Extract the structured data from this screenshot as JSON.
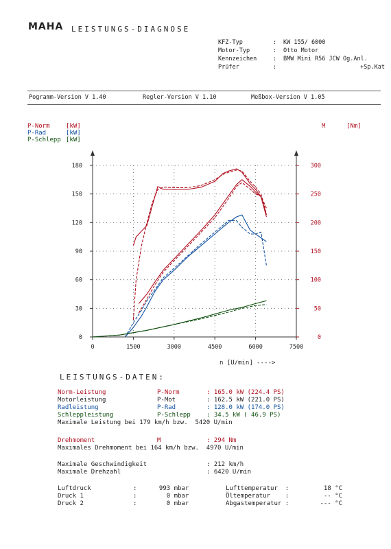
{
  "header": {
    "logo": "MAHA",
    "title": "LEISTUNGS-DIAGNOSE",
    "meta": [
      {
        "key": "KFZ-Typ",
        "sep": ":",
        "value": "KW 155/ 6000"
      },
      {
        "key": "Motor-Typ",
        "sep": ":",
        "value": "Otto Motor"
      },
      {
        "key": "Kennzeichen",
        "sep": ":",
        "value": "BMW Mini R56 JCW Og.Anl."
      },
      {
        "key": "Prüfer",
        "sep": ":",
        "value": "+Sp.Kat"
      }
    ]
  },
  "versions": {
    "program": "Pogramm-Version V 1.40",
    "regler": "Regler-Version V 1.10",
    "messbox": "Meßbox-Version V 1.05"
  },
  "colors": {
    "norm": "#b01020",
    "rad": "#1050a0",
    "schlepp": "#105010",
    "grid": "#555555"
  },
  "chart_data": {
    "type": "line",
    "left_axis_labels": [
      {
        "name": "P-Norm",
        "unit": "[kW]"
      },
      {
        "name": "P-Rad",
        "unit": "[kW]"
      },
      {
        "name": "P-Schlepp",
        "unit": "[kW]"
      }
    ],
    "right_axis_label": {
      "name": "M",
      "unit": "[Nm]"
    },
    "xlabel": "n [U/min] ---->",
    "xlim": [
      0,
      7500
    ],
    "ylim_left": [
      0,
      180
    ],
    "ylim_right": [
      0,
      300
    ],
    "x_ticks": [
      "0",
      "1500",
      "3000",
      "4500",
      "6000",
      "7500"
    ],
    "x_tick_values": [
      0,
      1500,
      3000,
      4500,
      6000,
      7500
    ],
    "y_left_ticks": [
      "0",
      "30",
      "60",
      "90",
      "120",
      "150",
      "180"
    ],
    "y_right_ticks": [
      "0",
      "50",
      "100",
      "150",
      "200",
      "250",
      "300"
    ],
    "grid": true,
    "series": [
      {
        "name": "M",
        "axis": "right",
        "color": "#b01020",
        "dashed": true,
        "x": [
          1500,
          1600,
          1800,
          2000,
          2200,
          2400,
          2600,
          3000,
          3500,
          4000,
          4500,
          4800,
          5000,
          5300,
          5500,
          5800,
          6000,
          6200,
          6400
        ],
        "y": [
          30,
          100,
          160,
          200,
          235,
          258,
          262,
          261,
          261,
          265,
          275,
          284,
          288,
          292,
          290,
          272,
          262,
          250,
          215
        ]
      },
      {
        "name": "M",
        "axis": "right",
        "color": "#b01020",
        "dashed": false,
        "x": [
          1500,
          1600,
          1800,
          2000,
          2200,
          2400,
          2600,
          3000,
          3500,
          4000,
          4500,
          4800,
          5000,
          5300,
          5500,
          5800,
          6000,
          6200,
          6400
        ],
        "y": [
          160,
          175,
          185,
          195,
          230,
          263,
          258,
          258,
          258,
          262,
          272,
          286,
          290,
          294,
          288,
          268,
          258,
          245,
          210
        ]
      },
      {
        "name": "P-Norm",
        "axis": "left",
        "color": "#b01020",
        "dashed": true,
        "x": [
          1700,
          2000,
          2300,
          2600,
          3000,
          3500,
          4000,
          4500,
          5000,
          5300,
          5500,
          5800,
          6000,
          6200,
          6400
        ],
        "y": [
          25,
          40,
          55,
          68,
          80,
          95,
          110,
          125,
          145,
          158,
          162,
          155,
          150,
          148,
          135
        ]
      },
      {
        "name": "P-Norm",
        "axis": "left",
        "color": "#b01020",
        "dashed": false,
        "x": [
          1700,
          2000,
          2300,
          2600,
          3000,
          3500,
          4000,
          4500,
          5000,
          5300,
          5500,
          5800,
          6000,
          6200,
          6400
        ],
        "y": [
          35,
          45,
          58,
          70,
          82,
          97,
          112,
          128,
          148,
          160,
          165,
          158,
          152,
          147,
          128
        ]
      },
      {
        "name": "P-Rad",
        "axis": "left",
        "color": "#1050a0",
        "dashed": true,
        "x": [
          1200,
          1500,
          1800,
          2000,
          2300,
          2600,
          3000,
          3500,
          4000,
          4500,
          5000,
          5300,
          5500,
          5800,
          6000,
          6200,
          6400
        ],
        "y": [
          0,
          15,
          28,
          38,
          50,
          62,
          72,
          85,
          98,
          110,
          122,
          122,
          115,
          108,
          108,
          110,
          75
        ]
      },
      {
        "name": "P-Rad",
        "axis": "left",
        "color": "#1050a0",
        "dashed": false,
        "x": [
          1200,
          1500,
          1800,
          2000,
          2300,
          2600,
          3000,
          3500,
          4000,
          4500,
          5000,
          5300,
          5500,
          5800,
          6000,
          6200,
          6400
        ],
        "y": [
          0,
          10,
          22,
          32,
          48,
          60,
          70,
          84,
          96,
          108,
          120,
          126,
          128,
          112,
          108,
          104,
          100
        ]
      },
      {
        "name": "P-Schlepp",
        "axis": "left",
        "color": "#105010",
        "dashed": true,
        "x": [
          0,
          1000,
          2000,
          3000,
          4000,
          5000,
          5500,
          6000,
          6400
        ],
        "y": [
          0,
          2,
          7,
          13,
          19,
          26,
          30,
          33,
          34
        ]
      },
      {
        "name": "P-Schlepp",
        "axis": "left",
        "color": "#105010",
        "dashed": false,
        "x": [
          0,
          1000,
          2000,
          3000,
          4000,
          5000,
          5500,
          6000,
          6400
        ],
        "y": [
          0,
          2,
          7,
          13,
          20,
          28,
          31,
          35,
          38
        ]
      }
    ]
  },
  "results": {
    "title": "LEISTUNGS-DATEN:",
    "power": [
      {
        "label": "Norm-Leistung",
        "symbol": "P-Norm",
        "value": ": 165.0 kW (224.4 PS)",
        "color": "red"
      },
      {
        "label": "Motorleistung",
        "symbol": "P-Mot",
        "value": ": 162.5 kW (221.0 PS)",
        "color": ""
      },
      {
        "label": "Radleistung",
        "symbol": "P-Rad",
        "value": ": 128.0 kW (174.0 PS)",
        "color": "blue"
      },
      {
        "label": "Schleppleistung",
        "symbol": "P-Schlepp",
        "value": ": 34.5 kW ( 46.9 PS)",
        "color": "green"
      }
    ],
    "max_power": "Maximale Leistung bei 179 km/h bzw.  5420 U/min",
    "torque": {
      "label": "Drehmoment",
      "symbol": "M",
      "value": ": 294 Nm"
    },
    "max_torque": "Maximales Drehmoment bei 164 km/h bzw.  4970 U/min",
    "max_speed": {
      "label": "Maximale Geschwindigkeit",
      "value": ": 212 km/h"
    },
    "max_rpm": {
      "label": "Maximale Drehzahl",
      "value": ": 6420 U/min"
    },
    "env": [
      {
        "l1": "Luftdruck",
        "v1": ":      993 mbar",
        "l2": "Lufttemperatur  :",
        "v2": "18 °C"
      },
      {
        "l1": "Druck 1",
        "v1": ":        0 mbar",
        "l2": "Öltemperatur    :",
        "v2": "-- °C"
      },
      {
        "l1": "Druck 2",
        "v1": ":        0 mbar",
        "l2": "Abgastemperatur :",
        "v2": "--- °C"
      }
    ]
  }
}
